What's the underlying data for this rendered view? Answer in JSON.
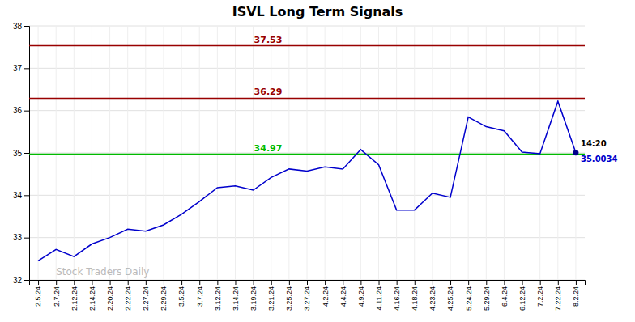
{
  "chart_data": {
    "type": "line",
    "title": "ISVL Long Term Signals",
    "categories": [
      "2.5.24",
      "2.7.24",
      "2.12.24",
      "2.14.24",
      "2.20.24",
      "2.22.24",
      "2.27.24",
      "2.29.24",
      "3.5.24",
      "3.7.24",
      "3.12.24",
      "3.14.24",
      "3.19.24",
      "3.21.24",
      "3.25.24",
      "3.27.24",
      "4.2.24",
      "4.4.24",
      "4.9.24",
      "4.11.24",
      "4.16.24",
      "4.18.24",
      "4.23.24",
      "4.25.24",
      "5.24.24",
      "5.29.24",
      "6.4.24",
      "6.12.24",
      "7.2.24",
      "7.22.24",
      "8.2.24"
    ],
    "values": [
      32.45,
      32.72,
      32.55,
      32.85,
      33.0,
      33.2,
      33.15,
      33.3,
      33.55,
      33.85,
      34.18,
      34.22,
      34.12,
      34.42,
      34.62,
      34.57,
      34.67,
      34.62,
      35.08,
      34.72,
      33.65,
      33.65,
      34.05,
      33.95,
      35.85,
      35.62,
      35.52,
      35.02,
      34.98,
      36.22,
      35.0034
    ],
    "color": "#0000cc",
    "last_point_color": "#00008b",
    "hlines": [
      {
        "value": 34.97,
        "label": "34.97",
        "color": "#00bb00"
      },
      {
        "value": 36.29,
        "label": "36.29",
        "color": "#990000"
      },
      {
        "value": 37.53,
        "label": "37.53",
        "color": "#990000"
      }
    ],
    "annotations": [
      {
        "text": "14:20",
        "color": "#000000"
      },
      {
        "text": "35.0034",
        "color": "#0000cc"
      }
    ],
    "watermark": {
      "text": "Stock Traders Daily",
      "color": "#bbbbbb"
    },
    "ylim": [
      32,
      38
    ],
    "yticks": [
      32,
      33,
      34,
      35,
      36,
      37,
      38
    ],
    "grid": true
  }
}
